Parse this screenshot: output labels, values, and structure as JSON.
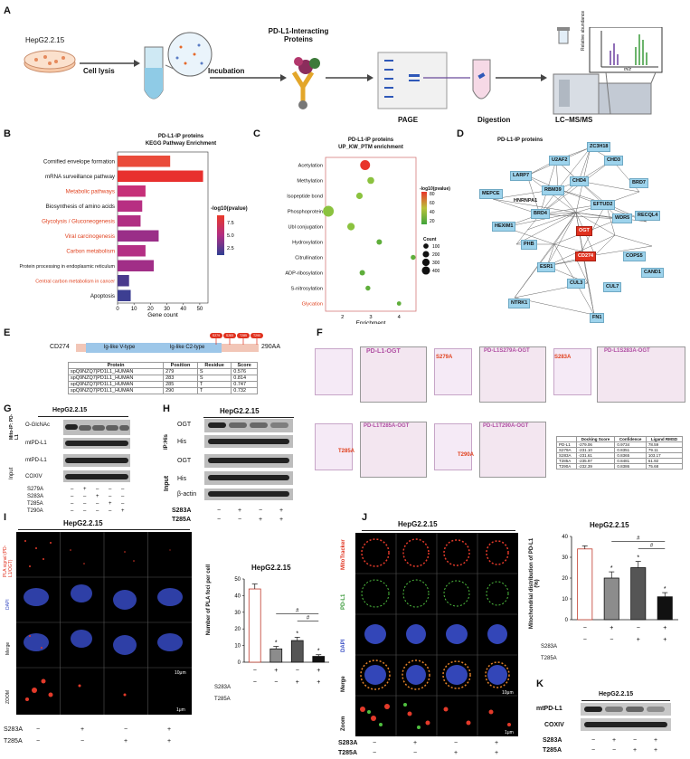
{
  "panel_labels": [
    "A",
    "B",
    "C",
    "D",
    "E",
    "F",
    "G",
    "H",
    "I",
    "J",
    "K"
  ],
  "A": {
    "cell_line": "HepG2.2.15",
    "steps": [
      "Cell lysis",
      "Incubation",
      "PD-L1-Interacting Proteins",
      "PAGE",
      "Digestion",
      "LC–MS/MS"
    ],
    "ms_ylabel": "Relative abundance",
    "ms_xlabel": "m/z"
  },
  "B": {
    "chart_data": {
      "type": "bar",
      "title": "PD-L1-IP proteins",
      "subtitle": "KEGG Pathway Enrichment",
      "xlabel": "Gene count",
      "categories": [
        "Cornified envelope formation",
        "mRNA surveillance pathway",
        "Metabolic pathways",
        "Biosynthesis of amino acids",
        "Glycolysis / Gluconeogenesis",
        "Viral carcinogenesis",
        "Carbon metabolism",
        "Protein processing in endoplasmic reticulum",
        "Central carbon metabolism in cancer",
        "Apoptosis"
      ],
      "highlighted": [
        false,
        false,
        true,
        false,
        true,
        true,
        true,
        false,
        true,
        false
      ],
      "values": [
        32,
        52,
        17,
        15,
        14,
        25,
        17,
        22,
        7,
        8
      ],
      "xlim": [
        0,
        55
      ],
      "xticks": [
        0,
        10,
        20,
        30,
        40,
        50
      ],
      "colors": [
        "#ea4b3a",
        "#e8302e",
        "#c63079",
        "#b72f82",
        "#b12e83",
        "#9a2e88",
        "#b42f84",
        "#a12e87",
        "#4a3a8d",
        "#3d3f92"
      ],
      "legend_title": "-log10(pvalue)",
      "legend_ticks": [
        "7.5",
        "5.0",
        "2.5"
      ]
    }
  },
  "C": {
    "chart_data": {
      "type": "scatter",
      "title": "PD-L1-IP proteins",
      "subtitle": "UP_KW_PTM enrichment",
      "xlabel": "Enrichment",
      "categories": [
        "Acetylation",
        "Methylation",
        "Isopeptide bond",
        "Phosphoprotein",
        "Ubl conjugation",
        "Hydroxylation",
        "Citrullination",
        "ADP-ribosylation",
        "S-nitrosylation",
        "Glycation"
      ],
      "highlighted": [
        false,
        false,
        false,
        false,
        false,
        false,
        false,
        false,
        false,
        true
      ],
      "x": [
        2.8,
        3.0,
        2.6,
        1.5,
        2.3,
        3.3,
        4.5,
        2.7,
        2.9,
        4.0
      ],
      "sizes": [
        320,
        120,
        100,
        400,
        150,
        60,
        40,
        60,
        40,
        25
      ],
      "colors": [
        "#e8342a",
        "#8bc23f",
        "#8bc23f",
        "#8bc23f",
        "#8bc23f",
        "#5fae3b",
        "#5fae3b",
        "#5fae3b",
        "#5fae3b",
        "#5fae3b"
      ],
      "xlim": [
        1.4,
        4.6
      ],
      "xticks": [
        2,
        3,
        4
      ],
      "legend_color_title": "-log10(pvalue)",
      "legend_color_ticks": [
        "80",
        "60",
        "40",
        "20"
      ],
      "legend_size_title": "Count",
      "legend_size_ticks": [
        "100",
        "200",
        "300",
        "400"
      ]
    }
  },
  "D": {
    "title": "PD-L1-IP proteins",
    "nodes": [
      "ZC3H18",
      "U2AF2",
      "CHD3",
      "LARP7",
      "CHD4",
      "BRD7",
      "RBM39",
      "MEPCE",
      "HNRNPA1",
      "EFTUD2",
      "RECQL4",
      "HEXIM1",
      "BRD4",
      "WDR5",
      "OGT",
      "PHB",
      "CD274",
      "COPS5",
      "ESR1",
      "CAND1",
      "CUL3",
      "CUL7",
      "NTRK1",
      "FN1"
    ]
  },
  "E": {
    "protein": "CD274",
    "domains": [
      "Ig-like V-type",
      "Ig-like C2-type"
    ],
    "length": "290AA",
    "sites": [
      "S279",
      "S283",
      "T285",
      "T290"
    ],
    "table_headers": [
      "Protein",
      "Position",
      "Residue",
      "Score"
    ],
    "table_rows": [
      [
        "spQ9NZQ7|PD1L1_HUMAN",
        "279",
        "S",
        "0.576"
      ],
      [
        "spQ9NZQ7|PD1L1_HUMAN",
        "283",
        "S",
        "0.814"
      ],
      [
        "spQ9NZQ7|PD1L1_HUMAN",
        "285",
        "T",
        "0.747"
      ],
      [
        "spQ9NZQ7|PD1L1_HUMAN",
        "290",
        "T",
        "0.732"
      ]
    ]
  },
  "F": {
    "titles": [
      "PD-L1-OGT",
      "PD-L1S279A-OGT",
      "PD-L1S283A-OGT",
      "PD-L1T285A-OGT",
      "PD-L1T290A-OGT"
    ],
    "mut_labels": [
      "S279A",
      "S283A",
      "T285A",
      "T290A"
    ],
    "table_headers": [
      "",
      "Docking Score",
      "Confidence",
      "Ligand RMSD"
    ],
    "table_rows": [
      [
        "PD-L1",
        "-279.06",
        "0.9734",
        "78.59"
      ],
      [
        "S279A",
        "-231.10",
        "0.8351",
        "79.11"
      ],
      [
        "S283A",
        "-231.61",
        "0.8365",
        "103.17"
      ],
      [
        "T285A",
        "-235.97",
        "0.8481",
        "61.92"
      ],
      [
        "T290A",
        "-232.39",
        "0.8386",
        "75.68"
      ]
    ]
  },
  "G": {
    "cell_line": "HepG2.2.15",
    "group1": "Mito-IP: PD-L1",
    "group2": "Input",
    "rows": [
      "O-GlcNAc",
      "mtPD-L1",
      "mtPD-L1",
      "COXIV"
    ],
    "conds": [
      "S279A",
      "S283A",
      "T285A",
      "T290A"
    ]
  },
  "H": {
    "cell_line": "HepG2.2.15",
    "group1": "IP:His",
    "group2": "Input",
    "rows": [
      "OGT",
      "His",
      "OGT",
      "His",
      "β-actin"
    ],
    "conds": [
      "S283A",
      "T285A"
    ],
    "signs": [
      [
        "−",
        "+",
        "−",
        "+"
      ],
      [
        "−",
        "−",
        "+",
        "+"
      ]
    ]
  },
  "I": {
    "cell_line": "HepG2.2.15",
    "rows": [
      "PLA signal (PD-L1/OGT)",
      "DAPI",
      "Merge",
      "ZOOM"
    ],
    "scalebars": [
      "10μm",
      "1μm"
    ],
    "conds": [
      "S283A",
      "T285A"
    ],
    "signs": [
      [
        "−",
        "+",
        "−",
        "+"
      ],
      [
        "−",
        "−",
        "+",
        "+"
      ]
    ],
    "chart_data": {
      "type": "bar",
      "title": "HepG2.2.15",
      "ylabel": "Number of PLA foci per cell",
      "values": [
        44,
        8,
        13,
        3.5
      ],
      "errors": [
        3,
        1.5,
        2,
        1
      ],
      "ylim": [
        0,
        50
      ],
      "yticks": [
        0,
        10,
        20,
        30,
        40,
        50
      ],
      "fills": [
        "#ffffff",
        "#8c8c8c",
        "#555555",
        "#111111"
      ],
      "stars": [
        "",
        "*",
        "*",
        "*"
      ],
      "signs": [
        [
          "−",
          "+",
          "−",
          "+"
        ],
        [
          "−",
          "−",
          "+",
          "+"
        ]
      ],
      "xrows": [
        "S283A",
        "T285A"
      ]
    }
  },
  "J": {
    "cell_line": "HepG2.2.15",
    "rows": [
      "MitoTracker",
      "PD-L1",
      "DAPI",
      "Merge",
      "Zoom"
    ],
    "scalebars": [
      "10μm",
      "1μm"
    ],
    "conds": [
      "S283A",
      "T285A"
    ],
    "signs": [
      [
        "−",
        "+",
        "−",
        "+"
      ],
      [
        "−",
        "−",
        "+",
        "+"
      ]
    ],
    "chart_data": {
      "type": "bar",
      "title": "HepG2.2.15",
      "ylabel": "Mitochondrial distribution of PD-L1 (%)",
      "values": [
        34,
        20,
        25,
        11
      ],
      "errors": [
        1.5,
        3,
        3,
        2
      ],
      "ylim": [
        0,
        40
      ],
      "yticks": [
        0,
        10,
        20,
        30,
        40
      ],
      "fills": [
        "#ffffff",
        "#8c8c8c",
        "#555555",
        "#111111"
      ],
      "stars": [
        "",
        "*",
        "*",
        "*"
      ],
      "signs": [
        [
          "−",
          "+",
          "−",
          "+"
        ],
        [
          "−",
          "−",
          "+",
          "+"
        ]
      ],
      "xrows": [
        "S283A",
        "T285A"
      ]
    }
  },
  "K": {
    "cell_line": "HepG2.2.15",
    "rows": [
      "mtPD-L1",
      "COXIV"
    ],
    "conds": [
      "S283A",
      "T285A"
    ],
    "signs": [
      [
        "−",
        "+",
        "−",
        "+"
      ],
      [
        "−",
        "−",
        "+",
        "+"
      ]
    ]
  },
  "sig": "#"
}
